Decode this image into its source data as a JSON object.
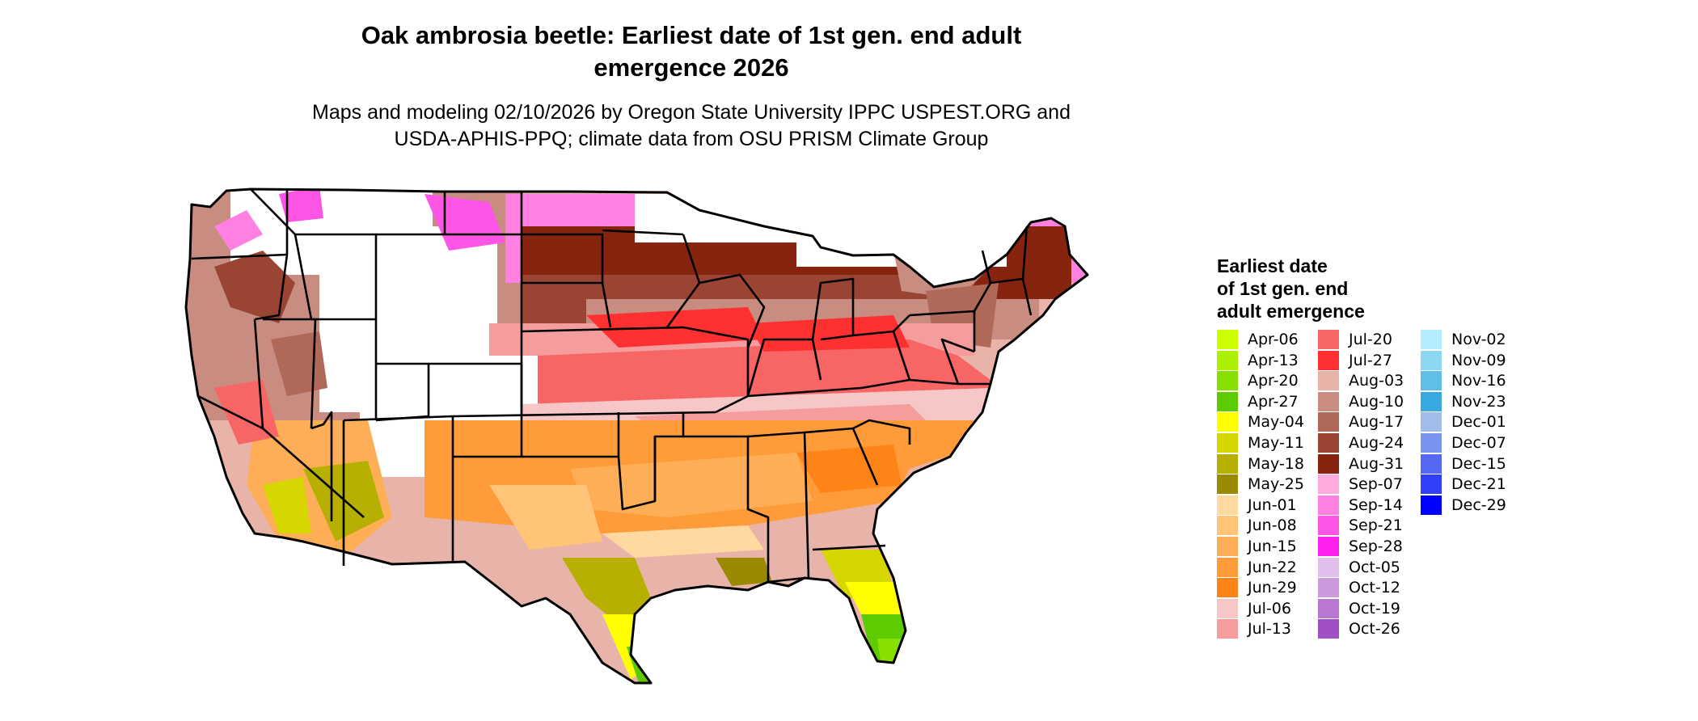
{
  "title_line1": "Oak ambrosia beetle: Earliest date of 1st gen. end adult",
  "title_line2": "emergence 2026",
  "subtitle_line1": "Maps and modeling 02/10/2026 by Oregon State University IPPC USPEST.ORG and",
  "subtitle_line2": "USDA-APHIS-PPQ; climate data from OSU PRISM Climate Group",
  "legend": {
    "title_line1": "Earliest date",
    "title_line2": "of 1st gen. end",
    "title_line3": "adult emergence",
    "entries": [
      {
        "label": "Apr-06",
        "color": "#ccff00"
      },
      {
        "label": "Apr-13",
        "color": "#aaf000"
      },
      {
        "label": "Apr-20",
        "color": "#88e000"
      },
      {
        "label": "Apr-27",
        "color": "#5ccc00"
      },
      {
        "label": "May-04",
        "color": "#ffff00"
      },
      {
        "label": "May-11",
        "color": "#d6d600"
      },
      {
        "label": "May-18",
        "color": "#b8b000"
      },
      {
        "label": "May-25",
        "color": "#9a8a00"
      },
      {
        "label": "Jun-01",
        "color": "#ffd9a0"
      },
      {
        "label": "Jun-08",
        "color": "#ffc478"
      },
      {
        "label": "Jun-15",
        "color": "#ffae58"
      },
      {
        "label": "Jun-22",
        "color": "#ff9b38"
      },
      {
        "label": "Jun-29",
        "color": "#ff8418"
      },
      {
        "label": "Jul-06",
        "color": "#f7c6c6"
      },
      {
        "label": "Jul-13",
        "color": "#f59c9c"
      },
      {
        "label": "Jul-20",
        "color": "#f76565"
      },
      {
        "label": "Jul-27",
        "color": "#ff3030"
      },
      {
        "label": "Aug-03",
        "color": "#e8b4aa"
      },
      {
        "label": "Aug-10",
        "color": "#c98c80"
      },
      {
        "label": "Aug-17",
        "color": "#b06858"
      },
      {
        "label": "Aug-24",
        "color": "#9a4434"
      },
      {
        "label": "Aug-31",
        "color": "#862410"
      },
      {
        "label": "Sep-07",
        "color": "#ffaadd"
      },
      {
        "label": "Sep-14",
        "color": "#ff80e0"
      },
      {
        "label": "Sep-21",
        "color": "#ff55e6"
      },
      {
        "label": "Sep-28",
        "color": "#ff22ee"
      },
      {
        "label": "Oct-05",
        "color": "#e0c0ea"
      },
      {
        "label": "Oct-12",
        "color": "#cc99dd"
      },
      {
        "label": "Oct-19",
        "color": "#b878d2"
      },
      {
        "label": "Oct-26",
        "color": "#a050c4"
      },
      {
        "label": "Nov-02",
        "color": "#b4ecff"
      },
      {
        "label": "Nov-09",
        "color": "#8cd8f2"
      },
      {
        "label": "Nov-16",
        "color": "#60bfe8"
      },
      {
        "label": "Nov-23",
        "color": "#38a8e0"
      },
      {
        "label": "Dec-01",
        "color": "#a0bce8"
      },
      {
        "label": "Dec-07",
        "color": "#7894ee"
      },
      {
        "label": "Dec-15",
        "color": "#5468f4"
      },
      {
        "label": "Dec-21",
        "color": "#3040fa"
      },
      {
        "label": "Dec-29",
        "color": "#0000ff"
      }
    ]
  }
}
